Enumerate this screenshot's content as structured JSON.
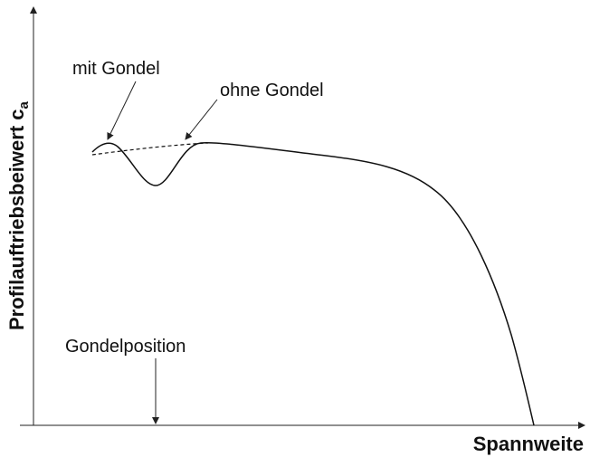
{
  "y_axis_label": {
    "text": "Profilauftriebsbeiwert c",
    "subscript": "a"
  },
  "x_axis_label": "Spannweite",
  "annotations": {
    "with_nacelle": "mit Gondel",
    "without_nacelle": "ohne Gondel",
    "nacelle_position": "Gondelposition"
  }
}
